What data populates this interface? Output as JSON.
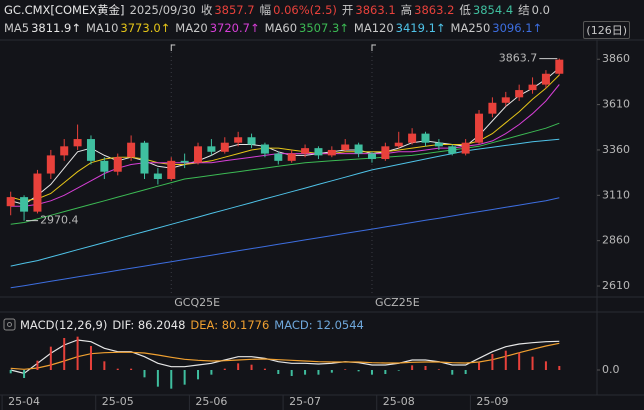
{
  "quote": {
    "symbol": "GC.CMX[COMEX黄金]",
    "date": "2025/09/30",
    "fields": [
      {
        "label": "收",
        "value": "3857.7",
        "color": "#e8413b"
      },
      {
        "label": "幅",
        "value": "0.06%(2.5)",
        "color": "#e8413b"
      },
      {
        "label": "开",
        "value": "3863.1",
        "color": "#e8413b"
      },
      {
        "label": "高",
        "value": "3863.2",
        "color": "#e8413b"
      },
      {
        "label": "低",
        "value": "3854.4",
        "color": "#3fbf9f"
      },
      {
        "label": "结",
        "value": "0.0",
        "color": "#c8c8c8"
      }
    ]
  },
  "period_button": "(126日)",
  "chart_data": [
    {
      "type": "candlestick",
      "categories": [
        null,
        "25-04",
        null,
        null,
        null,
        null,
        null,
        null,
        "25-05",
        null,
        null,
        null,
        null,
        null,
        null,
        "25-06",
        null,
        null,
        null,
        null,
        null,
        null,
        "25-07",
        null,
        null,
        null,
        null,
        null,
        null,
        "25-08",
        null,
        null,
        null,
        null,
        null,
        null,
        "25-09",
        null,
        null,
        null,
        null,
        null
      ],
      "open": [
        3050,
        3100,
        3020,
        3230,
        3330,
        3380,
        3420,
        3300,
        3240,
        3320,
        3400,
        3230,
        3200,
        3300,
        3290,
        3380,
        3350,
        3400,
        3430,
        3390,
        3340,
        3300,
        3340,
        3370,
        3330,
        3360,
        3390,
        3340,
        3310,
        3380,
        3400,
        3450,
        3400,
        3380,
        3340,
        3400,
        3560,
        3620,
        3650,
        3690,
        3720,
        3780
      ],
      "high": [
        3130,
        3110,
        3250,
        3360,
        3420,
        3500,
        3440,
        3320,
        3340,
        3440,
        3410,
        3260,
        3320,
        3340,
        3400,
        3420,
        3430,
        3460,
        3450,
        3400,
        3350,
        3360,
        3390,
        3380,
        3380,
        3420,
        3400,
        3350,
        3400,
        3460,
        3480,
        3460,
        3420,
        3390,
        3420,
        3580,
        3650,
        3680,
        3720,
        3760,
        3800,
        3863.7
      ],
      "low": [
        3000,
        2970.4,
        3010,
        3200,
        3300,
        3360,
        3280,
        3200,
        3220,
        3300,
        3200,
        3170,
        3190,
        3260,
        3280,
        3330,
        3340,
        3380,
        3370,
        3320,
        3280,
        3290,
        3320,
        3310,
        3320,
        3350,
        3320,
        3290,
        3300,
        3370,
        3390,
        3380,
        3360,
        3330,
        3330,
        3390,
        3540,
        3600,
        3630,
        3670,
        3700,
        3770
      ],
      "close": [
        3100,
        3020,
        3230,
        3330,
        3380,
        3420,
        3300,
        3240,
        3320,
        3400,
        3230,
        3200,
        3300,
        3290,
        3380,
        3350,
        3400,
        3430,
        3390,
        3340,
        3300,
        3340,
        3370,
        3330,
        3360,
        3390,
        3340,
        3310,
        3380,
        3400,
        3450,
        3400,
        3380,
        3340,
        3400,
        3560,
        3620,
        3650,
        3690,
        3720,
        3780,
        3857.7
      ],
      "up_color": "#e8413b",
      "down_color": "#3fbf9f",
      "ylim": [
        2555,
        3955
      ],
      "yticks": [
        2610,
        2860,
        3110,
        3360,
        3610,
        3860
      ],
      "high_mark": 3863.7,
      "low_mark": 2970.4,
      "contract_labels": [
        "GCQ25E",
        "GCZ25E"
      ],
      "series": [
        {
          "name": "MA5",
          "value_label": "3811.9↑",
          "color": "#e6e6e6",
          "values": [
            3080,
            3060,
            3110,
            3170,
            3260,
            3350,
            3370,
            3330,
            3300,
            3320,
            3300,
            3270,
            3260,
            3280,
            3300,
            3330,
            3370,
            3390,
            3390,
            3380,
            3350,
            3330,
            3330,
            3340,
            3350,
            3360,
            3360,
            3340,
            3350,
            3370,
            3400,
            3410,
            3400,
            3390,
            3380,
            3440,
            3520,
            3600,
            3660,
            3700,
            3750,
            3811.9
          ]
        },
        {
          "name": "MA10",
          "value_label": "3773.0↑",
          "color": "#e6c619",
          "values": [
            3100,
            3080,
            3090,
            3120,
            3180,
            3240,
            3290,
            3310,
            3320,
            3320,
            3310,
            3290,
            3280,
            3280,
            3290,
            3300,
            3320,
            3340,
            3360,
            3370,
            3370,
            3360,
            3350,
            3340,
            3340,
            3350,
            3350,
            3350,
            3350,
            3360,
            3370,
            3380,
            3390,
            3390,
            3390,
            3410,
            3450,
            3510,
            3570,
            3640,
            3700,
            3773.0
          ]
        },
        {
          "name": "MA20",
          "value_label": "3720.7↑",
          "color": "#d63fd6",
          "values": [
            3050,
            3050,
            3060,
            3080,
            3110,
            3150,
            3190,
            3230,
            3260,
            3280,
            3290,
            3290,
            3290,
            3290,
            3290,
            3290,
            3300,
            3310,
            3320,
            3330,
            3340,
            3340,
            3340,
            3340,
            3340,
            3340,
            3340,
            3340,
            3340,
            3350,
            3350,
            3360,
            3370,
            3370,
            3380,
            3390,
            3410,
            3450,
            3500,
            3560,
            3630,
            3720.7
          ]
        },
        {
          "name": "MA60",
          "value_label": "3507.3↑",
          "color": "#3cba54",
          "values": [
            2950,
            2960,
            2980,
            3000,
            3020,
            3040,
            3060,
            3080,
            3100,
            3120,
            3140,
            3160,
            3180,
            3200,
            3210,
            3220,
            3230,
            3240,
            3250,
            3260,
            3270,
            3280,
            3290,
            3295,
            3300,
            3305,
            3310,
            3315,
            3320,
            3325,
            3330,
            3340,
            3350,
            3360,
            3370,
            3380,
            3400,
            3420,
            3440,
            3460,
            3480,
            3507.3
          ]
        },
        {
          "name": "MA120",
          "value_label": "3419.1↑",
          "color": "#4fc3e8",
          "values": [
            2720,
            2735,
            2750,
            2770,
            2790,
            2810,
            2830,
            2850,
            2870,
            2890,
            2910,
            2930,
            2950,
            2970,
            2990,
            3010,
            3030,
            3050,
            3070,
            3090,
            3110,
            3130,
            3150,
            3170,
            3190,
            3210,
            3230,
            3250,
            3265,
            3280,
            3295,
            3310,
            3325,
            3340,
            3355,
            3365,
            3375,
            3385,
            3395,
            3405,
            3412,
            3419.1
          ]
        },
        {
          "name": "MA250",
          "value_label": "3096.1↑",
          "color": "#3d6ee0",
          "values": [
            2600,
            2612,
            2624,
            2636,
            2648,
            2660,
            2672,
            2684,
            2696,
            2708,
            2720,
            2732,
            2744,
            2756,
            2768,
            2780,
            2792,
            2804,
            2816,
            2828,
            2840,
            2852,
            2864,
            2876,
            2888,
            2900,
            2912,
            2924,
            2936,
            2948,
            2960,
            2972,
            2984,
            2996,
            3008,
            3020,
            3032,
            3044,
            3056,
            3068,
            3080,
            3096.1
          ]
        }
      ]
    },
    {
      "type": "macd",
      "title": "MACD(12,26,9)",
      "ylim": [
        -75,
        102
      ],
      "yticks": [
        {
          "value": 0,
          "label": "0.0"
        }
      ],
      "up_color": "#e8413b",
      "down_color": "#3fbf9f",
      "series": [
        {
          "label": "DIF: 86.2048",
          "kind": "line",
          "color": "#e6e6e6",
          "values": [
            0,
            -10,
            20,
            50,
            75,
            90,
            85,
            65,
            55,
            55,
            40,
            20,
            10,
            10,
            15,
            20,
            30,
            40,
            40,
            35,
            25,
            20,
            20,
            18,
            20,
            25,
            22,
            15,
            15,
            20,
            30,
            30,
            25,
            15,
            15,
            35,
            55,
            70,
            78,
            82,
            85,
            86.2048
          ]
        },
        {
          "label": "DEA: 80.1776",
          "kind": "line",
          "color": "#f0a030",
          "values": [
            5,
            2,
            6,
            15,
            27,
            40,
            49,
            52,
            53,
            53,
            51,
            45,
            38,
            32,
            29,
            27,
            28,
            30,
            32,
            33,
            31,
            29,
            27,
            25,
            24,
            24,
            24,
            22,
            21,
            21,
            23,
            24,
            24,
            22,
            21,
            24,
            31,
            41,
            52,
            62,
            72,
            80.1776
          ]
        },
        {
          "label": "MACD: 12.0544",
          "kind": "bar",
          "color": "#6fa8dc",
          "values": [
            -10,
            -24,
            28,
            70,
            96,
            100,
            72,
            26,
            4,
            4,
            -22,
            -50,
            -56,
            -44,
            -28,
            -14,
            4,
            20,
            16,
            4,
            -12,
            -18,
            -14,
            -14,
            -8,
            2,
            -4,
            -14,
            -12,
            -2,
            14,
            12,
            2,
            -14,
            -12,
            22,
            48,
            58,
            52,
            40,
            26,
            12.0544
          ]
        }
      ]
    }
  ]
}
